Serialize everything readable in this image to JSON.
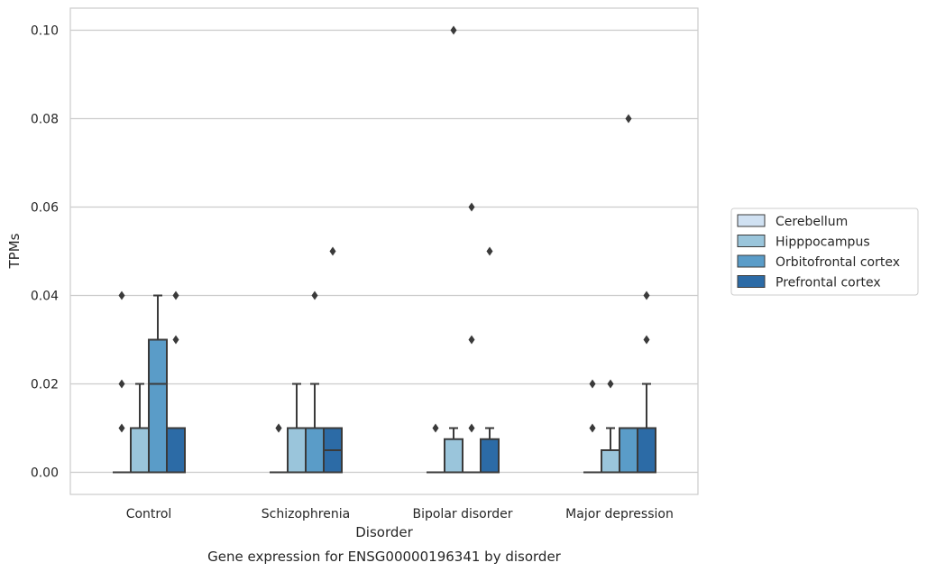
{
  "chart_data": {
    "type": "box",
    "title": "",
    "caption": "Gene expression for ENSG00000196341 by disorder",
    "xlabel": "Disorder",
    "ylabel": "TPMs",
    "ylim": [
      -0.005,
      0.105
    ],
    "yticks": [
      "0.00",
      "0.02",
      "0.04",
      "0.06",
      "0.08",
      "0.10"
    ],
    "ytick_values": [
      0,
      0.02,
      0.04,
      0.06,
      0.08,
      0.1
    ],
    "grid": "horizontal",
    "legend_position": "right",
    "categories": [
      "Control",
      "Schizophrenia",
      "Bipolar disorder",
      "Major depression"
    ],
    "series": [
      {
        "name": "Cerebellum",
        "color": "#d0e1f2",
        "boxes": [
          {
            "q1": 0,
            "median": 0,
            "q3": 0,
            "whisker_low": 0,
            "whisker_high": 0,
            "outliers": [
              0.01,
              0.02,
              0.04
            ]
          },
          {
            "q1": 0,
            "median": 0,
            "q3": 0,
            "whisker_low": 0,
            "whisker_high": 0,
            "outliers": [
              0.01,
              0.01
            ]
          },
          {
            "q1": 0,
            "median": 0,
            "q3": 0,
            "whisker_low": 0,
            "whisker_high": 0,
            "outliers": [
              0.01
            ]
          },
          {
            "q1": 0,
            "median": 0,
            "q3": 0,
            "whisker_low": 0,
            "whisker_high": 0,
            "outliers": [
              0.01,
              0.02
            ]
          }
        ]
      },
      {
        "name": "Hipppocampus",
        "color": "#9ac5db",
        "boxes": [
          {
            "q1": 0,
            "median": 0,
            "q3": 0.01,
            "whisker_low": 0,
            "whisker_high": 0.02,
            "outliers": []
          },
          {
            "q1": 0,
            "median": 0,
            "q3": 0.01,
            "whisker_low": 0,
            "whisker_high": 0.02,
            "outliers": []
          },
          {
            "q1": 0,
            "median": 0,
            "q3": 0.0075,
            "whisker_low": 0,
            "whisker_high": 0.01,
            "outliers": [
              0.1
            ]
          },
          {
            "q1": 0,
            "median": 0,
            "q3": 0.005,
            "whisker_low": 0,
            "whisker_high": 0.01,
            "outliers": [
              0.02
            ]
          }
        ]
      },
      {
        "name": "Orbitofrontal cortex",
        "color": "#5a9cc8",
        "boxes": [
          {
            "q1": 0,
            "median": 0.02,
            "q3": 0.03,
            "whisker_low": 0,
            "whisker_high": 0.04,
            "outliers": []
          },
          {
            "q1": 0,
            "median": 0,
            "q3": 0.01,
            "whisker_low": 0,
            "whisker_high": 0.02,
            "outliers": [
              0.04
            ]
          },
          {
            "q1": 0,
            "median": 0,
            "q3": 0,
            "whisker_low": 0,
            "whisker_high": 0,
            "outliers": [
              0.01,
              0.03,
              0.06
            ]
          },
          {
            "q1": 0,
            "median": 0,
            "q3": 0.01,
            "whisker_low": 0,
            "whisker_high": 0.01,
            "outliers": [
              0.08
            ]
          }
        ]
      },
      {
        "name": "Prefrontal cortex",
        "color": "#2c6ba6",
        "boxes": [
          {
            "q1": 0,
            "median": 0,
            "q3": 0.01,
            "whisker_low": 0,
            "whisker_high": 0.01,
            "outliers": [
              0.03,
              0.04
            ]
          },
          {
            "q1": 0,
            "median": 0.005,
            "q3": 0.01,
            "whisker_low": 0,
            "whisker_high": 0.01,
            "outliers": [
              0.05
            ]
          },
          {
            "q1": 0,
            "median": 0,
            "q3": 0.0075,
            "whisker_low": 0,
            "whisker_high": 0.01,
            "outliers": [
              0.05
            ]
          },
          {
            "q1": 0,
            "median": 0,
            "q3": 0.01,
            "whisker_low": 0,
            "whisker_high": 0.02,
            "outliers": [
              0.03,
              0.04
            ]
          }
        ]
      }
    ]
  }
}
